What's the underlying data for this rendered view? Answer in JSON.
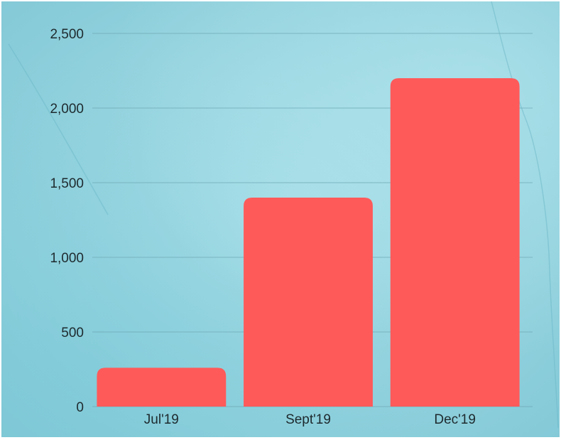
{
  "chart_data": {
    "type": "bar",
    "categories": [
      "Jul'19",
      "Sept'19",
      "Dec'19"
    ],
    "values": [
      260,
      1400,
      2200
    ],
    "title": "",
    "xlabel": "",
    "ylabel": "",
    "ylim": [
      0,
      2500
    ],
    "yticks": [
      0,
      500,
      1000,
      1500,
      2000,
      2500
    ],
    "ytick_labels": [
      "0",
      "500",
      "1,000",
      "1,500",
      "2,000",
      "2,500"
    ],
    "grid": true,
    "bar_color": "#ff5a5a",
    "background_color": "#97d6e0"
  }
}
